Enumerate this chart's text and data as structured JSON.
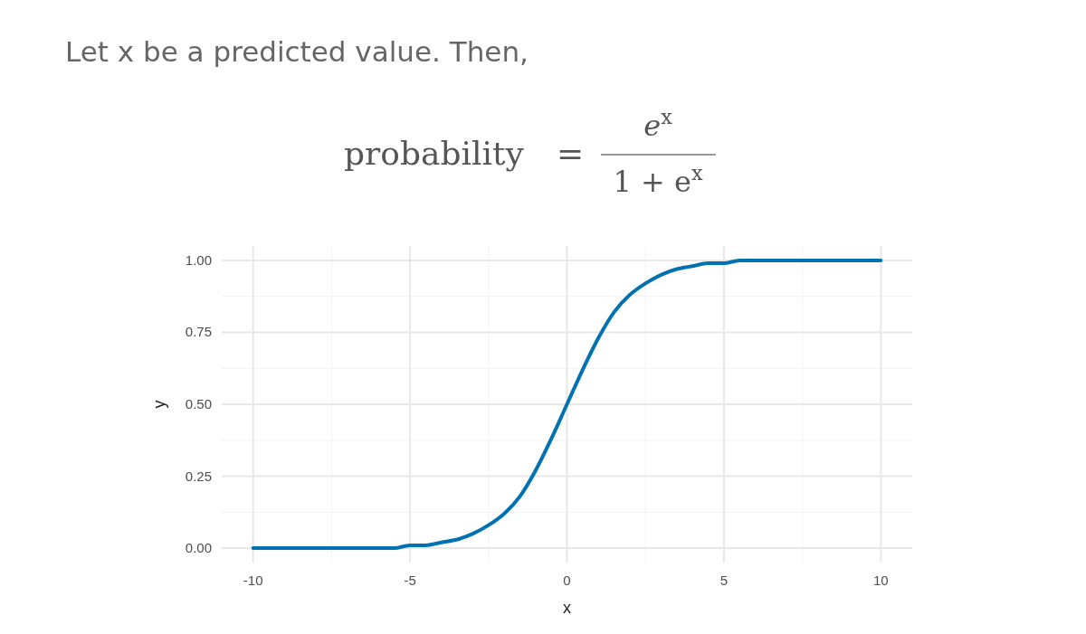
{
  "chart_data": {
    "type": "line",
    "title": "Let x be a predicted value. Then,",
    "annotations": [
      "probability",
      "=",
      "e$^{x}$",
      "1 + e$^{x}$"
    ],
    "xlabel": "x",
    "ylabel": "y",
    "x": [
      -10,
      -9.5,
      -9,
      -8.5,
      -8,
      -7.5,
      -7,
      -6.5,
      -6,
      -5.5,
      -5,
      -4.5,
      -4,
      -3.5,
      -3,
      -2.5,
      -2,
      -1.5,
      -1,
      -0.5,
      0,
      0.5,
      1,
      1.5,
      2,
      2.5,
      3,
      3.5,
      4,
      4.5,
      5,
      5.5,
      6,
      6.5,
      7,
      7.5,
      8,
      8.5,
      9,
      9.5,
      10
    ],
    "series": [
      {
        "color": "#0072b2",
        "values": [
          0,
          0,
          0,
          0,
          0,
          0,
          0,
          0,
          0,
          0,
          0.01,
          0.01,
          0.02,
          0.03,
          0.05,
          0.08,
          0.12,
          0.18,
          0.27,
          0.38,
          0.5,
          0.62,
          0.73,
          0.82,
          0.88,
          0.92,
          0.95,
          0.97,
          0.98,
          0.99,
          0.99,
          1,
          1,
          1,
          1,
          1,
          1,
          1,
          1,
          1,
          1
        ]
      }
    ],
    "xlim": [
      -11,
      11
    ],
    "ylim": [
      -0.05,
      1.05
    ],
    "xticks": [
      -10,
      -5,
      0,
      5,
      10
    ],
    "yticks": [
      {
        "value": 0,
        "label": "0.00"
      },
      {
        "value": 0.25,
        "label": "0.25"
      },
      {
        "value": 0.5,
        "label": "0.50"
      },
      {
        "value": 0.75,
        "label": "0.75"
      },
      {
        "value": 1,
        "label": "1.00"
      }
    ],
    "grid": true,
    "marker": "none",
    "line_style": "solid"
  }
}
